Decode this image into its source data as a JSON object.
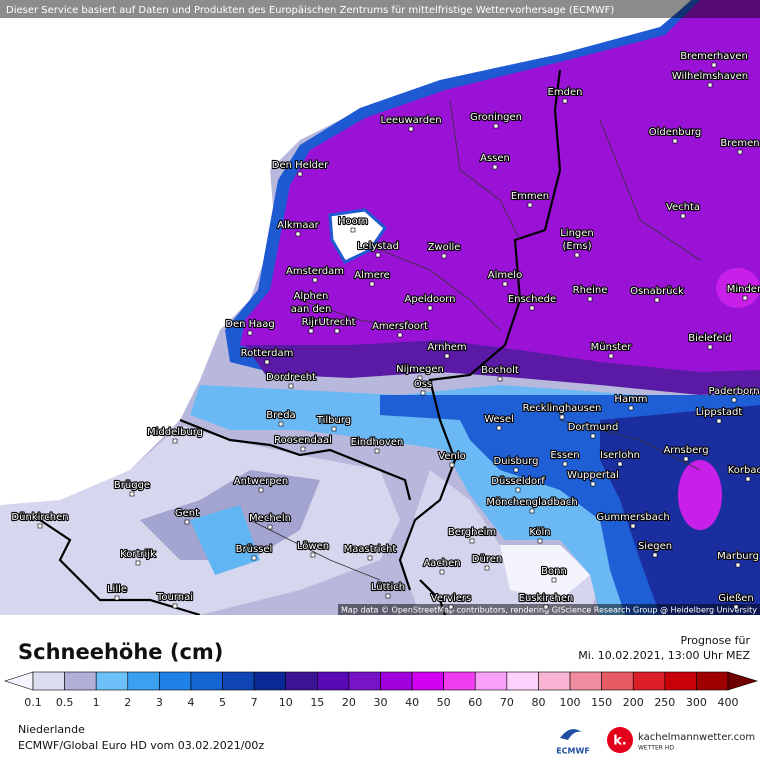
{
  "banner": "Dieser Service basiert auf Daten und Produkten des Europäischen Zentrums für mittelfristige Wettervorhersage (ECMWF)",
  "map": {
    "cities": [
      [
        "Bremerhaven"
      ],
      [
        "Wilhelmshaven"
      ],
      [
        "Emden"
      ],
      [
        "Leeuwarden"
      ],
      [
        "Groningen"
      ],
      [
        "Oldenburg"
      ],
      [
        "Bremen"
      ],
      [
        "Den Helder"
      ],
      [
        "Assen"
      ],
      [
        "Emmen"
      ],
      [
        "Vechta"
      ],
      [
        "Alkmaar"
      ],
      [
        "Hoorn"
      ],
      [
        "Lelystad"
      ],
      [
        "Zwolle"
      ],
      [
        "Lingen",
        "(Ems)"
      ],
      [
        "Amsterdam"
      ],
      [
        "Almere"
      ],
      [
        "Almelo"
      ],
      [
        "Rheine"
      ],
      [
        "Osnabrück"
      ],
      [
        "Minden"
      ],
      [
        "Enschede"
      ],
      [
        "Apeldoorn"
      ],
      [
        "Alphen",
        "aan den",
        "Rijn"
      ],
      [
        "Utrecht"
      ],
      [
        "Amersfoort"
      ],
      [
        "Den Haag"
      ],
      [
        "Bielefeld"
      ],
      [
        "Arnhem"
      ],
      [
        "Münster"
      ],
      [
        "Rotterdam"
      ],
      [
        "Nijmegen"
      ],
      [
        "Bocholt"
      ],
      [
        "Dordrecht"
      ],
      [
        "Oss"
      ],
      [
        "Paderborn"
      ],
      [
        "Hamm"
      ],
      [
        "Recklinghausen"
      ],
      [
        "Lippstadt"
      ],
      [
        "Breda"
      ],
      [
        "Tilburg"
      ],
      [
        "Wesel"
      ],
      [
        "Dortmund"
      ],
      [
        "Middelburg"
      ],
      [
        "Roosendaal"
      ],
      [
        "Eindhoven"
      ],
      [
        "Arnsberg"
      ],
      [
        "Essen"
      ],
      [
        "Iserlohn"
      ],
      [
        "Venlo"
      ],
      [
        "Duisburg"
      ],
      [
        "Korbach"
      ],
      [
        "Wuppertal"
      ],
      [
        "Antwerpen"
      ],
      [
        "Düsseldorf"
      ],
      [
        "Brügge"
      ],
      [
        "Mönchengladbach"
      ],
      [
        "Gent"
      ],
      [
        "Mecheln"
      ],
      [
        "Gummersbach"
      ],
      [
        "Dünkirchen"
      ],
      [
        "Bergheim"
      ],
      [
        "Köln"
      ],
      [
        "Kortrijk"
      ],
      [
        "Brüssel"
      ],
      [
        "Löwen"
      ],
      [
        "Maastricht"
      ],
      [
        "Siegen"
      ],
      [
        "Marburg"
      ],
      [
        "Düren"
      ],
      [
        "Aachen"
      ],
      [
        "Bonn"
      ],
      [
        "Lille"
      ],
      [
        "Tournai"
      ],
      [
        "Lüttich"
      ],
      [
        "Euskirchen"
      ],
      [
        "Verviers"
      ],
      [
        "Gießen"
      ]
    ],
    "attribution": "Map data © OpenStreetMap contributors, rendering GIScience Research Group @ Heidelberg University"
  },
  "legend": {
    "title": "Schneehöhe (cm)",
    "forecast_label": "Prognose für",
    "forecast_time": "Mi. 10.02.2021, 13:00 Uhr MEZ",
    "ticks": [
      0.1,
      0.5,
      1,
      2,
      3,
      4,
      5,
      7,
      10,
      15,
      20,
      30,
      40,
      50,
      60,
      70,
      80,
      100,
      150,
      200,
      250,
      300,
      400
    ]
  },
  "footer": {
    "region": "Niederlande",
    "model": "ECMWF/Global Euro HD vom  03.02.2021/00z",
    "ecmwf_logo": "ECMWF",
    "logo_letter": "k.",
    "site": "kachelmannwetter.com",
    "site_sub": "WETTER HD"
  }
}
